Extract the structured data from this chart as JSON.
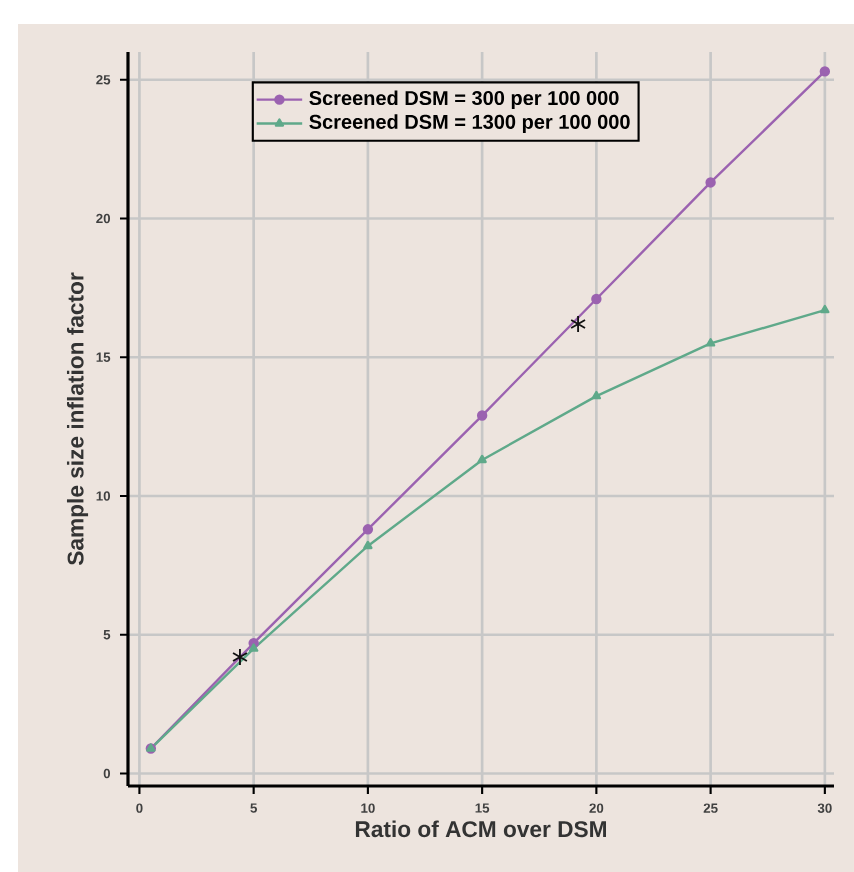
{
  "chart_data": {
    "type": "line",
    "xlabel": "Ratio of ACM over DSM",
    "ylabel": "Sample size inflation factor",
    "xlim": [
      -0.5,
      30.4
    ],
    "ylim": [
      -0.45,
      26
    ],
    "xticks": [
      0,
      5,
      10,
      15,
      20,
      25,
      30
    ],
    "yticks": [
      0,
      5,
      10,
      15,
      20,
      25
    ],
    "grid": true,
    "legend": "top",
    "series": [
      {
        "name": "Screened DSM = 300 per 100 000",
        "color": "#9b62b0",
        "marker": "circle",
        "x": [
          0.5,
          5,
          10,
          15,
          20,
          25,
          30
        ],
        "values": [
          0.9,
          4.7,
          8.8,
          12.9,
          17.1,
          21.3,
          25.3
        ]
      },
      {
        "name": "Screened DSM = 1300 per 100 000",
        "color": "#5fa98a",
        "marker": "triangle",
        "x": [
          0.5,
          5,
          10,
          15,
          20,
          25,
          30
        ],
        "values": [
          0.9,
          4.5,
          8.2,
          11.3,
          13.6,
          15.5,
          16.7
        ]
      },
      {
        "type": "scatter",
        "color": "#111111",
        "marker": "cross",
        "x": [
          4.4,
          19.2
        ],
        "values": [
          4.2,
          16.2
        ]
      }
    ]
  }
}
